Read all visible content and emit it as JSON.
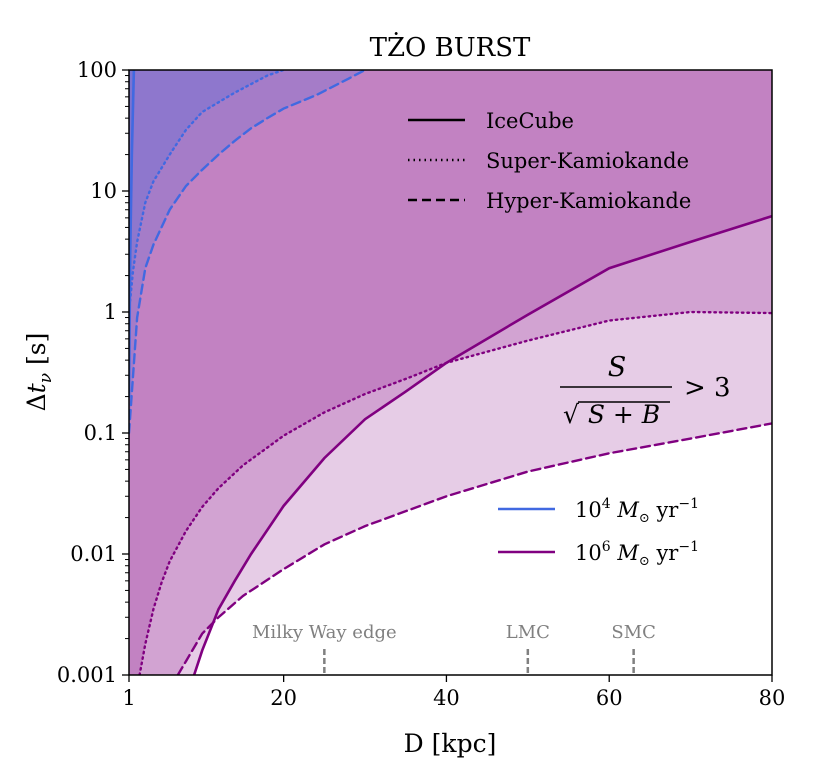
{
  "chart_data": {
    "type": "line",
    "title": "TŻO BURST",
    "xlabel": "D [kpc]",
    "ylabel": "Δt_ν [s]",
    "xlim": [
      1,
      80
    ],
    "ylim": [
      0.001,
      100
    ],
    "yscale": "log",
    "x_ticks": [
      1,
      20,
      40,
      60,
      80
    ],
    "x_tick_labels": [
      "1",
      "20",
      "40",
      "60",
      "80"
    ],
    "y_ticks": [
      0.001,
      0.01,
      0.1,
      1,
      10,
      100
    ],
    "y_tick_labels": [
      "0.001",
      "0.01",
      "0.1",
      "1",
      "10",
      "100"
    ],
    "grid": false,
    "colors": {
      "blue": "#4169e1",
      "purple": "#800080",
      "fill_blue": "#4169e1",
      "fill_purple": "#800080"
    },
    "series": [
      {
        "name": "IceCube 10^4",
        "rate": "10^4",
        "detector": "IceCube",
        "style": "solid",
        "color": "blue",
        "x": [
          1,
          1.15,
          1.35,
          1.6
        ],
        "y": [
          0.2,
          3,
          20,
          100
        ]
      },
      {
        "name": "Super-Kamiokande 10^4",
        "rate": "10^4",
        "detector": "Super-Kamiokande",
        "style": "dotted",
        "color": "blue",
        "x": [
          1,
          1.5,
          2,
          3,
          4,
          6,
          8,
          10,
          14,
          18,
          20
        ],
        "y": [
          1,
          2.2,
          3.8,
          8,
          12,
          20,
          32,
          45,
          65,
          90,
          100
        ]
      },
      {
        "name": "Hyper-Kamiokande 10^4",
        "rate": "10^4",
        "detector": "Hyper-Kamiokande",
        "style": "dashed",
        "color": "blue",
        "x": [
          1,
          2,
          3,
          4,
          6,
          8,
          10,
          12,
          14,
          16,
          18,
          20,
          24,
          28,
          30
        ],
        "y": [
          0.1,
          0.9,
          2.3,
          3.6,
          7,
          11,
          15,
          20,
          26,
          33,
          40,
          48,
          62,
          85,
          100
        ]
      },
      {
        "name": "IceCube 10^6",
        "rate": "10^6",
        "detector": "IceCube",
        "style": "solid",
        "color": "purple",
        "x": [
          9,
          10,
          12,
          14,
          16,
          20,
          25,
          30,
          35,
          40,
          50,
          60,
          70,
          80
        ],
        "y": [
          0.001,
          0.0016,
          0.0035,
          0.006,
          0.01,
          0.025,
          0.062,
          0.13,
          0.22,
          0.38,
          0.95,
          2.3,
          3.8,
          6.2
        ]
      },
      {
        "name": "Super-Kamiokande 10^6",
        "rate": "10^6",
        "detector": "Super-Kamiokande",
        "style": "dotted",
        "color": "purple",
        "x": [
          2.3,
          3,
          4,
          5,
          6,
          8,
          10,
          12,
          15,
          20,
          25,
          30,
          35,
          40,
          50,
          60,
          70,
          80
        ],
        "y": [
          0.001,
          0.0018,
          0.0035,
          0.0058,
          0.0087,
          0.0155,
          0.0245,
          0.035,
          0.054,
          0.095,
          0.148,
          0.21,
          0.28,
          0.38,
          0.58,
          0.85,
          1.0,
          0.98
        ]
      },
      {
        "name": "Hyper-Kamiokande 10^6",
        "rate": "10^6",
        "detector": "Hyper-Kamiokande",
        "style": "dashed",
        "color": "purple",
        "x": [
          7,
          8,
          10,
          12,
          15,
          20,
          25,
          30,
          40,
          50,
          60,
          70,
          80
        ],
        "y": [
          0.001,
          0.0013,
          0.0022,
          0.003,
          0.0045,
          0.0075,
          0.012,
          0.017,
          0.03,
          0.048,
          0.068,
          0.09,
          0.12
        ]
      }
    ],
    "legend_detectors": [
      {
        "label": "IceCube",
        "style": "solid"
      },
      {
        "label": "Super-Kamiokande",
        "style": "dotted"
      },
      {
        "label": "Hyper-Kamiokande",
        "style": "dashed"
      }
    ],
    "legend_rates": [
      {
        "coef": "10",
        "exp": "4",
        "unit": "M",
        "unit_sub": "⊙",
        "yr": "yr",
        "yr_exp": "−1",
        "color": "blue"
      },
      {
        "coef": "10",
        "exp": "6",
        "unit": "M",
        "unit_sub": "⊙",
        "yr": "yr",
        "yr_exp": "−1",
        "color": "purple"
      }
    ],
    "annotation": {
      "numerator": "S",
      "denominator": "S + B",
      "relation": "> 3"
    },
    "markers": [
      {
        "label": "Milky Way edge",
        "x": 25
      },
      {
        "label": "LMC",
        "x": 50
      },
      {
        "label": "SMC",
        "x": 63
      }
    ]
  }
}
